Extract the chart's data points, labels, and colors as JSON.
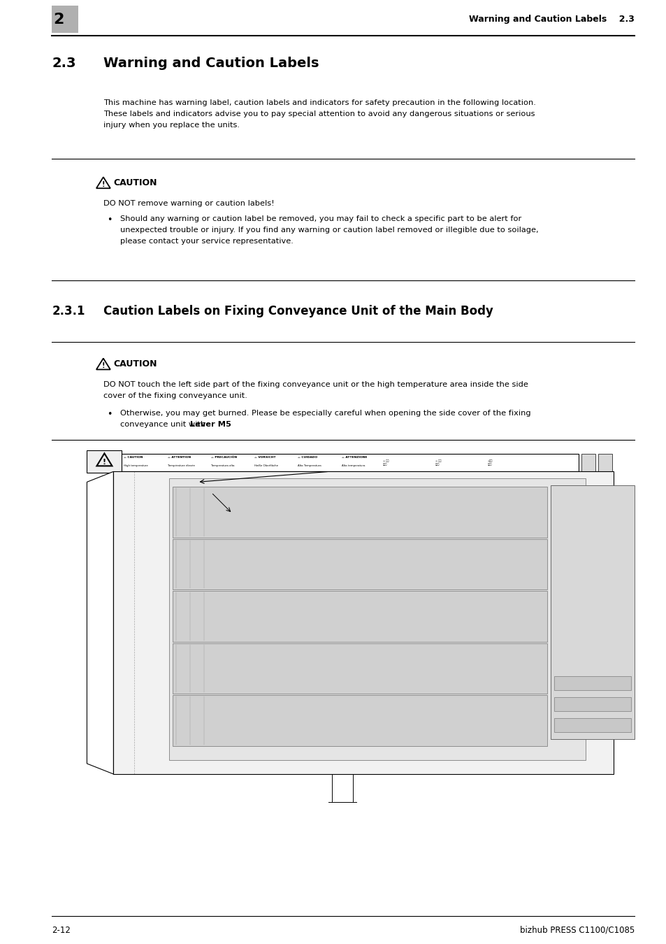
{
  "page_bg": "#ffffff",
  "header_chapter_num": "2",
  "header_chapter_num_bg": "#b0b0b0",
  "header_right_text": "Warning and Caution Labels",
  "header_right_section": "2.3",
  "section_num": "2.3",
  "section_title_text": "Warning and Caution Labels",
  "section_intro_line1": "This machine has warning label, caution labels and indicators for safety precaution in the following location.",
  "section_intro_line2": "These labels and indicators advise you to pay special attention to avoid any dangerous situations or serious",
  "section_intro_line3": "injury when you replace the units.",
  "caution1_title": "CAUTION",
  "caution1_main": "DO NOT remove warning or caution labels!",
  "caution1_bullet1_line1": "Should any warning or caution label be removed, you may fail to check a specific part to be alert for",
  "caution1_bullet1_line2": "unexpected trouble or injury. If you find any warning or caution label removed or illegible due to soilage,",
  "caution1_bullet1_line3": "please contact your service representative.",
  "subsection_num": "2.3.1",
  "subsection_title": "Caution Labels on Fixing Conveyance Unit of the Main Body",
  "caution2_title": "CAUTION",
  "caution2_main_line1": "DO NOT touch the left side part of the fixing conveyance unit or the high temperature area inside the side",
  "caution2_main_line2": "cover of the fixing conveyance unit.",
  "caution2_bullet1_line1": "Otherwise, you may get burned. Please be especially careful when opening the side cover of the fixing",
  "caution2_bullet1_line2_normal": "conveyance unit with ",
  "caution2_bullet1_line2_bold": "Lever M5",
  "caution2_bullet1_line2_end": ".",
  "footer_left": "2-12",
  "footer_right": "bizhub PRESS C1100/C1085",
  "ml": 0.078,
  "mr": 0.952,
  "cl": 0.155
}
